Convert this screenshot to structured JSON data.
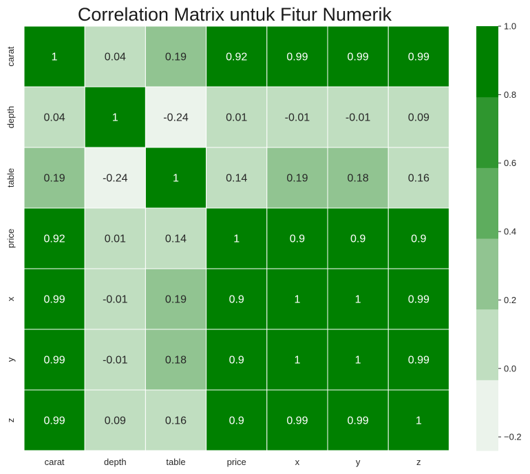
{
  "chart_data": {
    "type": "heatmap",
    "title": "Correlation Matrix untuk Fitur Numerik",
    "rows": [
      "carat",
      "depth",
      "table",
      "price",
      "x",
      "y",
      "z"
    ],
    "cols": [
      "carat",
      "depth",
      "table",
      "price",
      "x",
      "y",
      "z"
    ],
    "values": [
      [
        1,
        0.04,
        0.19,
        0.92,
        0.99,
        0.99,
        0.99
      ],
      [
        0.04,
        1,
        -0.24,
        0.01,
        -0.01,
        -0.01,
        0.09
      ],
      [
        0.19,
        -0.24,
        1,
        0.14,
        0.19,
        0.18,
        0.16
      ],
      [
        0.92,
        0.01,
        0.14,
        1,
        0.9,
        0.9,
        0.9
      ],
      [
        0.99,
        -0.01,
        0.19,
        0.9,
        1,
        1,
        0.99
      ],
      [
        0.99,
        -0.01,
        0.18,
        0.9,
        1,
        1,
        0.99
      ],
      [
        0.99,
        0.09,
        0.16,
        0.9,
        0.99,
        0.99,
        1
      ]
    ],
    "labels": [
      [
        "1",
        "0.04",
        "0.19",
        "0.92",
        "0.99",
        "0.99",
        "0.99"
      ],
      [
        "0.04",
        "1",
        "-0.24",
        "0.01",
        "-0.01",
        "-0.01",
        "0.09"
      ],
      [
        "0.19",
        "-0.24",
        "1",
        "0.14",
        "0.19",
        "0.18",
        "0.16"
      ],
      [
        "0.92",
        "0.01",
        "0.14",
        "1",
        "0.9",
        "0.9",
        "0.9"
      ],
      [
        "0.99",
        "-0.01",
        "0.19",
        "0.9",
        "1",
        "1",
        "0.99"
      ],
      [
        "0.99",
        "-0.01",
        "0.18",
        "0.9",
        "1",
        "1",
        "0.99"
      ],
      [
        "0.99",
        "0.09",
        "0.16",
        "0.9",
        "0.99",
        "0.99",
        "1"
      ]
    ],
    "colorbar": {
      "vmin": -0.24,
      "vmax": 1.0,
      "ticks": [
        1.0,
        0.8,
        0.6,
        0.4,
        0.2,
        0.0,
        -0.2
      ],
      "tick_labels": [
        "1.0",
        "0.8",
        "0.6",
        "0.4",
        "0.2",
        "0.0",
        "−0.2"
      ],
      "colors": [
        "#ebf3eb",
        "#c0dec0",
        "#91c491",
        "#5ead5e",
        "#2f962f",
        "#008000"
      ]
    },
    "dark_text_color": "#262626",
    "light_text_color": "#ffffff"
  }
}
